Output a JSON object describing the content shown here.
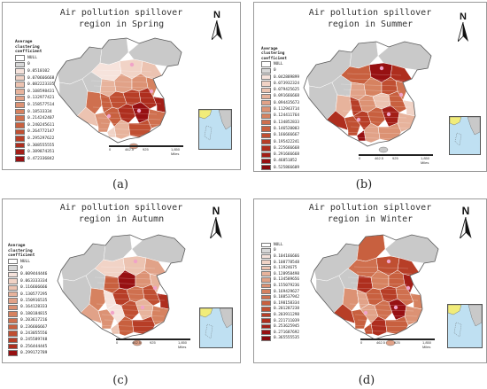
{
  "panels": [
    {
      "id": "a",
      "title_line1": "Air pollution spillover",
      "title_line2": "region in Spring",
      "caption": "(a)",
      "north": "N",
      "legend_title": [
        "Average",
        "clustering",
        "coefficient"
      ],
      "legend_items": [
        {
          "label": "NULL",
          "color": "#ffffff"
        },
        {
          "label": "0",
          "color": "#d8d8d8"
        },
        {
          "label": "0.0510102",
          "color": "#f6e3dc"
        },
        {
          "label": "0.070666668",
          "color": "#f1d3c6"
        },
        {
          "label": "0.082223335",
          "color": "#ecc3b1"
        },
        {
          "label": "0.108598431",
          "color": "#e7b39c"
        },
        {
          "label": "0.132977421",
          "color": "#e1a288"
        },
        {
          "label": "0.158577514",
          "color": "#dc9274"
        },
        {
          "label": "0.18533334",
          "color": "#d68260"
        },
        {
          "label": "0.214242407",
          "color": "#cf704f"
        },
        {
          "label": "0.240245611",
          "color": "#c8603f"
        },
        {
          "label": "0.264772147",
          "color": "#c04f32"
        },
        {
          "label": "0.295297622",
          "color": "#b73e27"
        },
        {
          "label": "0.308555555",
          "color": "#ae2e1e"
        },
        {
          "label": "0.389874351",
          "color": "#a31e17"
        },
        {
          "label": "0.472336842",
          "color": "#971012"
        }
      ],
      "scale_ticks": [
        "0",
        "462.5",
        "925",
        "1,850 Miles"
      ]
    },
    {
      "id": "b",
      "title_line1": "Air pollution spillover",
      "title_line2": "region in Summer",
      "caption": "(b)",
      "north": "N",
      "legend_title": [
        "Average",
        "clustering",
        "coefficient"
      ],
      "legend_items": [
        {
          "label": "NULL",
          "color": "#ffffff"
        },
        {
          "label": "0",
          "color": "#d8d8d8"
        },
        {
          "label": "0.042889899",
          "color": "#f6e3dc"
        },
        {
          "label": "0.073932324",
          "color": "#f1d3c6"
        },
        {
          "label": "0.079425625",
          "color": "#ecc3b1"
        },
        {
          "label": "0.091666668",
          "color": "#e7b39c"
        },
        {
          "label": "0.094435673",
          "color": "#e1a288"
        },
        {
          "label": "0.112943714",
          "color": "#dc9274"
        },
        {
          "label": "0.124411764",
          "color": "#d68260"
        },
        {
          "label": "0.134852833",
          "color": "#cf704f"
        },
        {
          "label": "0.146520003",
          "color": "#c8603f"
        },
        {
          "label": "0.166666667",
          "color": "#c04f32"
        },
        {
          "label": "0.195422241",
          "color": "#b73e27"
        },
        {
          "label": "0.225666668",
          "color": "#ae2e1e"
        },
        {
          "label": "0.291666668",
          "color": "#a31e17"
        },
        {
          "label": "0.46851852",
          "color": "#971012"
        },
        {
          "label": "0.525866609",
          "color": "#870a0e"
        }
      ],
      "scale_ticks": [
        "0",
        "462.5",
        "925",
        "1,850 Miles"
      ]
    },
    {
      "id": "c",
      "title_line1": "Air pollution spillover",
      "title_line2": "region in Autumn",
      "caption": "(c)",
      "north": "N",
      "legend_title": [
        "Average",
        "clustering",
        "coefficient"
      ],
      "legend_items": [
        {
          "label": "NULL",
          "color": "#ffffff"
        },
        {
          "label": "0",
          "color": "#d8d8d8"
        },
        {
          "label": "0.009444446",
          "color": "#f6e3dc"
        },
        {
          "label": "0.063333334",
          "color": "#f1d3c6"
        },
        {
          "label": "0.116666666",
          "color": "#ecc3b1"
        },
        {
          "label": "0.130577295",
          "color": "#e7b39c"
        },
        {
          "label": "0.150916535",
          "color": "#e1a288"
        },
        {
          "label": "0.164128333",
          "color": "#dc9274"
        },
        {
          "label": "0.180184815",
          "color": "#d68260"
        },
        {
          "label": "0.203617216",
          "color": "#cf704f"
        },
        {
          "label": "0.236666667",
          "color": "#c8603f"
        },
        {
          "label": "0.243055556",
          "color": "#c04f32"
        },
        {
          "label": "0.245589748",
          "color": "#b73e27"
        },
        {
          "label": "0.256444445",
          "color": "#ae2e1e"
        },
        {
          "label": "0.299172789",
          "color": "#971012"
        }
      ],
      "scale_ticks": [
        "0",
        "462.5",
        "925",
        "1,850 Miles"
      ]
    },
    {
      "id": "d",
      "title_line1": "Air pollution sipllover",
      "title_line2": "region in Winter",
      "caption": "(d)",
      "north": "N",
      "legend_title": [],
      "legend_items": [
        {
          "label": "NULL",
          "color": "#ffffff"
        },
        {
          "label": "0",
          "color": "#d8d8d8"
        },
        {
          "label": "0.104166666",
          "color": "#f6e3dc"
        },
        {
          "label": "0.108778548",
          "color": "#f1d3c6"
        },
        {
          "label": "0.11924675",
          "color": "#ecc3b1"
        },
        {
          "label": "0.128958498",
          "color": "#e7b39c"
        },
        {
          "label": "0.134589656",
          "color": "#e1a288"
        },
        {
          "label": "0.155079236",
          "color": "#dc9274"
        },
        {
          "label": "0.169429627",
          "color": "#d68260"
        },
        {
          "label": "0.188537942",
          "color": "#cf704f"
        },
        {
          "label": "0.198158334",
          "color": "#c8603f"
        },
        {
          "label": "0.201287238",
          "color": "#c04f32"
        },
        {
          "label": "0.203911298",
          "color": "#b73e27"
        },
        {
          "label": "0.221711039",
          "color": "#ae2e1e"
        },
        {
          "label": "0.253625945",
          "color": "#a31e17"
        },
        {
          "label": "0.271687692",
          "color": "#971012"
        },
        {
          "label": "0.365555535",
          "color": "#870a0e"
        }
      ],
      "scale_ticks": [
        "0",
        "462.5",
        "925",
        "1,850 Miles"
      ]
    }
  ],
  "map_colors": {
    "gray": "#c9c9c9",
    "outline": "#5a5a5a",
    "sea": "#bfe0f2",
    "yellow": "#f1ec7a",
    "pink": "#f0a3c8"
  }
}
